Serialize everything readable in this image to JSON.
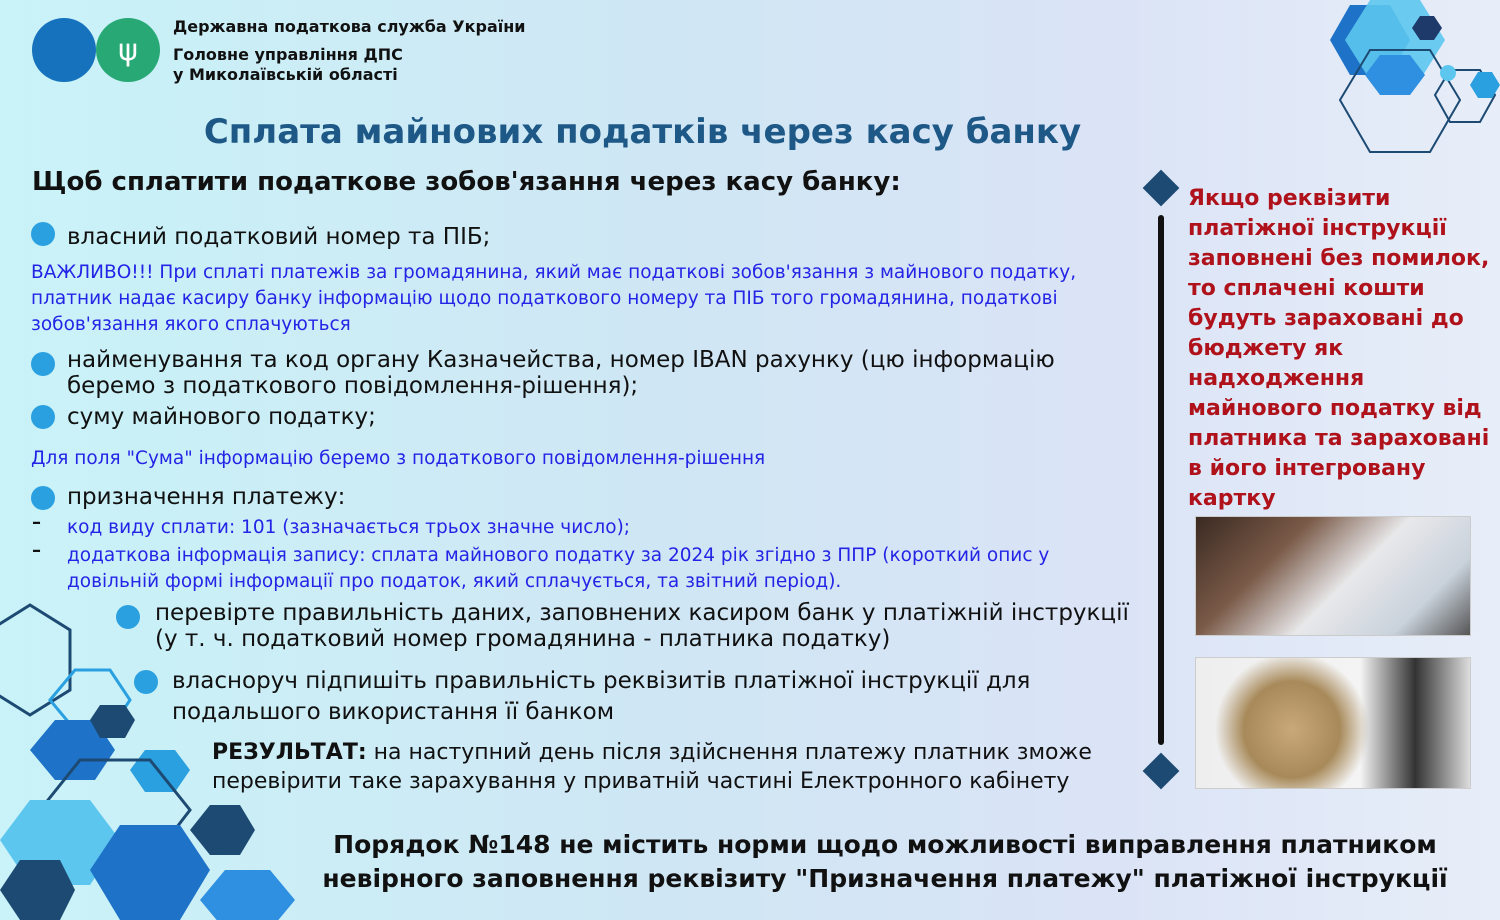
{
  "header": {
    "org_line1": "Державна податкова служба України",
    "org_line2": "Головне управління ДПС",
    "org_line3": "у Миколаївській області",
    "emblem_icon": "trident-icon"
  },
  "title": "Сплата майнових податків через касу банку",
  "subtitle": "Щоб сплатити податкове зобов'язання через касу банку:",
  "items": {
    "i1": "власний податковий номер та ПІБ;",
    "important": "ВАЖЛИВО!!! При сплаті платежів за громадянина, який має податкові зобов'язання з майнового податку, платник надає касиру банку інформацію щодо податкового номеру та ПІБ того громадянина, податкові зобов'язання якого сплачуються",
    "i2": "найменування та код органу Казначейства, номер IBAN рахунку (цю інформацію беремо з податкового повідомлення-рішення);",
    "i3": "суму майнового податку;",
    "sum_note": "Для поля \"Сума\" інформацію беремо з податкового повідомлення-рішення",
    "i4": "призначення платежу:",
    "d1": "код виду сплати: 101 (зазначається трьох значне число);",
    "d2": "додаткова інформація запису: сплата майнового податку за 2024 рік згідно з ППР (короткий опис у довільній формі інформації про податок, який сплачується, та звітний період).",
    "i5": "перевірте правильність даних, заповнених касиром банк у платіжній інструкції (у т. ч.  податковий номер громадянина - платника податку)",
    "i6": "власноруч підпишіть правильність реквізитів платіжної інструкції для подальшого використання її банком",
    "result_label": "РЕЗУЛЬТАТ:",
    "result_text": " на наступний день після здійснення платежу платник зможе перевірити таке зарахування у приватній частині Електронного кабінету"
  },
  "side_note": "Якщо реквізити платіжної інструкції заповнені без помилок, то сплачені кошти будуть зараховані до бюджету як надходження майнового податку від платника та зараховані в його інтегровану картку",
  "footer": "Порядок №148 не містить норми щодо можливості виправлення платником невірного заповнення реквізиту \"Призначення платежу\" платіжної інструкції",
  "colors": {
    "title": "#1d5886",
    "blue_text": "#2424e6",
    "red_text": "#b0121b",
    "bullet": "#2aa0e0"
  }
}
